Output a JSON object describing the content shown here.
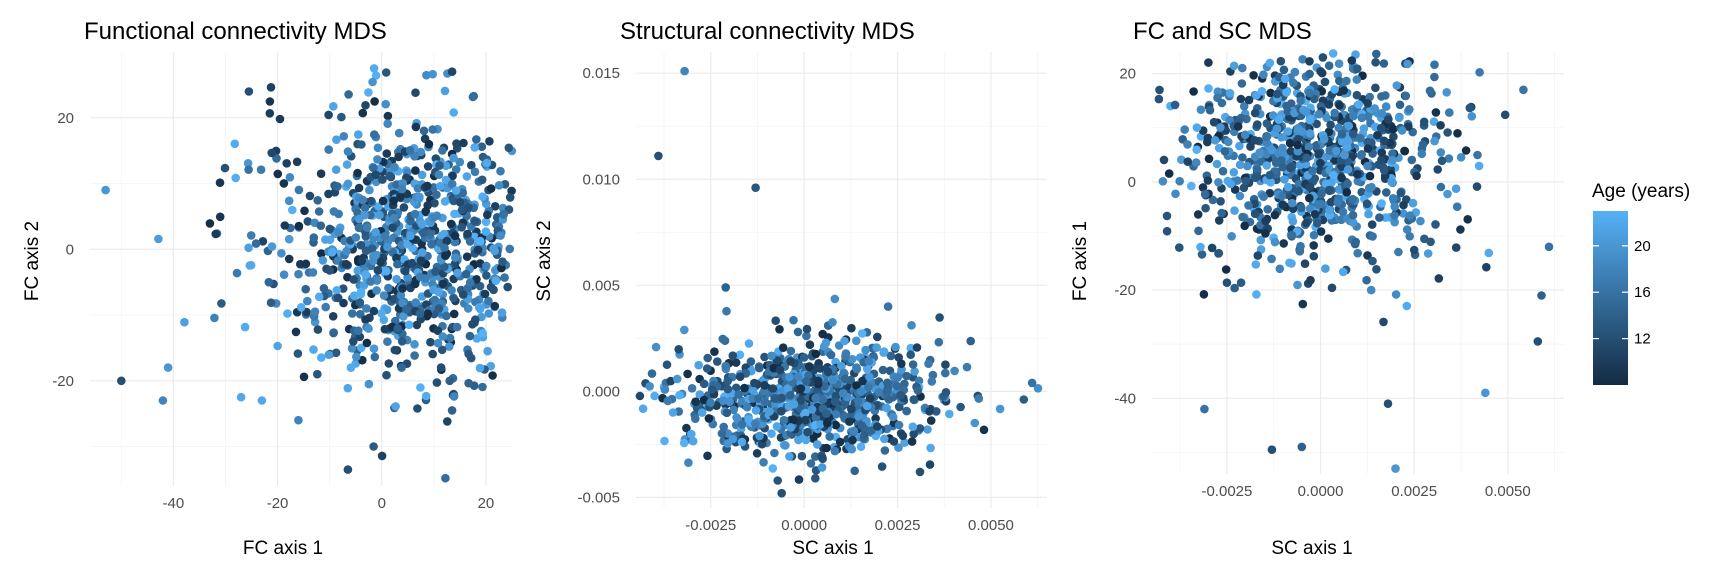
{
  "chart_data": [
    {
      "type": "scatter",
      "title": "Functional connectivity MDS",
      "xlabel": "FC axis 1",
      "ylabel": "FC axis 2",
      "xlim": [
        -56,
        25
      ],
      "ylim": [
        -36,
        30
      ],
      "xticks": [
        -40,
        -20,
        0,
        20
      ],
      "yticks": [
        -20,
        0,
        20
      ],
      "xtick_labels": [
        "-40",
        "-20",
        "0",
        "20"
      ],
      "ytick_labels": [
        "-20",
        "0",
        "20"
      ],
      "grid": true,
      "color_by": "Age (years)",
      "n_points": 880,
      "cloud": {
        "cx": 6,
        "cy": 0,
        "sx": 13,
        "sy": 10
      },
      "outliers": [
        {
          "x": -53,
          "y": 9,
          "age": 20
        },
        {
          "x": -50,
          "y": -20,
          "age": 12
        },
        {
          "x": -42,
          "y": -23,
          "age": 18
        },
        {
          "x": -41,
          "y": -18,
          "age": 20
        },
        {
          "x": -27,
          "y": -22.5,
          "age": 22
        },
        {
          "x": -23,
          "y": -23,
          "age": 22
        },
        {
          "x": -16,
          "y": -26,
          "age": 18
        },
        {
          "x": -6.5,
          "y": -33.5,
          "age": 12
        },
        {
          "x": 13.5,
          "y": 27,
          "age": 11
        },
        {
          "x": -25.5,
          "y": 24,
          "age": 12
        },
        {
          "x": 13.5,
          "y": -24.5,
          "age": 14
        }
      ]
    },
    {
      "type": "scatter",
      "title": "Structural connectivity MDS",
      "xlabel": "SC axis 1",
      "ylabel": "SC axis 2",
      "xlim": [
        -0.0045,
        0.0065
      ],
      "ylim": [
        -0.0055,
        0.016
      ],
      "xticks": [
        -0.0025,
        0.0,
        0.0025,
        0.005
      ],
      "yticks": [
        -0.005,
        0.0,
        0.005,
        0.01,
        0.015
      ],
      "xtick_labels": [
        "-0.0025",
        "0.0000",
        "0.0025",
        "0.0050"
      ],
      "ytick_labels": [
        "-0.005",
        "0.000",
        "0.005",
        "0.010",
        "0.015"
      ],
      "grid": true,
      "color_by": "Age (years)",
      "n_points": 880,
      "cloud": {
        "cx": 0.0002,
        "cy": -0.0003,
        "sx": 0.0017,
        "sy": 0.0013
      },
      "outliers": [
        {
          "x": -0.0032,
          "y": 0.0151,
          "age": 18
        },
        {
          "x": -0.0039,
          "y": 0.0111,
          "age": 12
        },
        {
          "x": -0.0013,
          "y": 0.0096,
          "age": 13
        },
        {
          "x": -0.0021,
          "y": 0.0049,
          "age": 14
        },
        {
          "x": -0.0006,
          "y": -0.0048,
          "age": 12
        },
        {
          "x": 0.0003,
          "y": -0.0041,
          "age": 13
        },
        {
          "x": 0.0031,
          "y": -0.0038,
          "age": 12
        },
        {
          "x": 0.0061,
          "y": 0.0004,
          "age": 16
        }
      ]
    },
    {
      "type": "scatter",
      "title": "FC and SC MDS",
      "xlabel": "SC axis 1",
      "ylabel": "FC axis 1",
      "xlim": [
        -0.0045,
        0.0065
      ],
      "ylim": [
        -54,
        24
      ],
      "xticks": [
        -0.0025,
        0.0,
        0.0025,
        0.005
      ],
      "yticks": [
        -40,
        -20,
        0,
        20
      ],
      "xtick_labels": [
        "-0.0025",
        "0.0000",
        "0.0025",
        "0.0050"
      ],
      "ytick_labels": [
        "-40",
        "-20",
        "0",
        "20"
      ],
      "grid": true,
      "color_by": "Age (years)",
      "n_points": 880,
      "cloud": {
        "cx": -0.0002,
        "cy": 5,
        "sx": 0.0017,
        "sy": 10
      },
      "outliers": [
        {
          "x": 0.002,
          "y": -53,
          "age": 20
        },
        {
          "x": -0.0013,
          "y": -49.5,
          "age": 12
        },
        {
          "x": -0.0005,
          "y": -49,
          "age": 14
        },
        {
          "x": 0.0044,
          "y": -39,
          "age": 20
        },
        {
          "x": 0.0061,
          "y": -12,
          "age": 16
        },
        {
          "x": 0.0059,
          "y": -21,
          "age": 14
        },
        {
          "x": 0.0058,
          "y": -29.5,
          "age": 12
        },
        {
          "x": -0.0031,
          "y": -42,
          "age": 16
        },
        {
          "x": 0.0018,
          "y": -41,
          "age": 12
        },
        {
          "x": -0.0043,
          "y": 17,
          "age": 12
        }
      ]
    }
  ],
  "legend": {
    "title": "Age (years)",
    "placement": "right",
    "min_age": 8,
    "max_age": 23,
    "ticks": [
      12,
      16,
      20
    ],
    "tick_labels": [
      "12",
      "16",
      "20"
    ],
    "color_low": "#132B43",
    "color_high": "#56B1F7"
  }
}
